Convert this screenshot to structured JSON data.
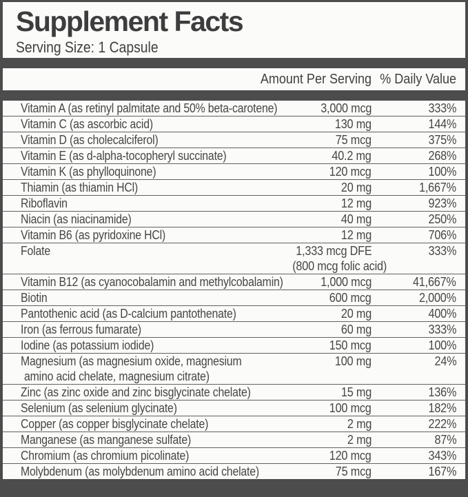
{
  "label": {
    "title": "Supplement Facts",
    "serving_size": "Serving Size: 1 Capsule",
    "header": {
      "amount": "Amount Per Serving",
      "daily_value": "% Daily Value"
    },
    "rows": [
      {
        "name": "Vitamin A (as retinyl palmitate and 50% beta-carotene)",
        "amount": "3,000 mcg",
        "dv": "333%"
      },
      {
        "name": "Vitamin C (as ascorbic acid)",
        "amount": "130 mg",
        "dv": "144%"
      },
      {
        "name": "Vitamin D (as cholecalciferol)",
        "amount": "75 mcg",
        "dv": "375%"
      },
      {
        "name": "Vitamin E (as d-alpha-tocopheryl succinate)",
        "amount": "40.2 mg",
        "dv": "268%"
      },
      {
        "name": "Vitamin K (as phylloquinone)",
        "amount": "120 mcg",
        "dv": "100%"
      },
      {
        "name": "Thiamin (as thiamin HCl)",
        "amount": "20 mg",
        "dv": "1,667%"
      },
      {
        "name": "Riboflavin",
        "amount": "12 mg",
        "dv": "923%"
      },
      {
        "name": "Niacin (as niacinamide)",
        "amount": "40 mg",
        "dv": "250%"
      },
      {
        "name": "Vitamin B6 (as pyridoxine HCl)",
        "amount": "12 mg",
        "dv": "706%"
      },
      {
        "name": "Folate",
        "amount": "1,333 mcg DFE",
        "amount_note": "(800 mcg folic acid)",
        "dv": "333%"
      },
      {
        "name": "Vitamin B12 (as cyanocobalamin and methylcobalamin)",
        "amount": "1,000 mcg",
        "dv": "41,667%"
      },
      {
        "name": "Biotin",
        "amount": "600 mcg",
        "dv": "2,000%"
      },
      {
        "name": "Pantothenic acid (as D-calcium pantothenate)",
        "amount": "20 mg",
        "dv": "400%"
      },
      {
        "name": "Iron (as ferrous fumarate)",
        "amount": "60 mg",
        "dv": "333%"
      },
      {
        "name": "Iodine (as potassium iodide)",
        "amount": "150 mcg",
        "dv": "100%"
      },
      {
        "name": "Magnesium (as magnesium oxide, magnesium",
        "name_line2": "amino acid chelate, magnesium citrate)",
        "amount": "100 mg",
        "dv": "24%"
      },
      {
        "name": "Zinc (as zinc oxide and zinc bisglycinate chelate)",
        "amount": "15 mg",
        "dv": "136%"
      },
      {
        "name": "Selenium (as selenium glycinate)",
        "amount": "100 mcg",
        "dv": "182%"
      },
      {
        "name": "Copper (as copper bisglycinate chelate)",
        "amount": "2 mg",
        "dv": "222%"
      },
      {
        "name": "Manganese (as manganese sulfate)",
        "amount": "2 mg",
        "dv": "87%"
      },
      {
        "name": "Chromium (as chromium picolinate)",
        "amount": "120 mcg",
        "dv": "343%"
      },
      {
        "name": "Molybdenum (as molybdenum amino acid chelate)",
        "amount": "75 mcg",
        "dv": "167%"
      }
    ],
    "colors": {
      "band": "#4c4c4c",
      "paper": "#fbfbf9",
      "text": "#464646",
      "separator": "#606060"
    }
  }
}
